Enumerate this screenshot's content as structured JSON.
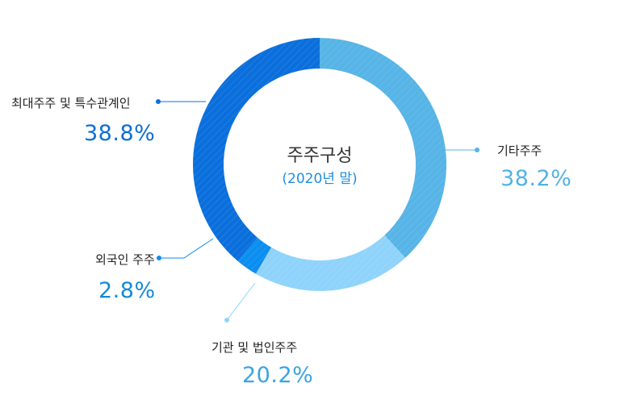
{
  "colors": {
    "largest": "#0a6fdc",
    "others": "#56b4e6",
    "institutions": "#8fd3fb",
    "foreign": "#0b8ef0",
    "pct_largest": "#0c6fd1",
    "pct_others": "#53b2e3",
    "pct_institutions": "#3aa4e0",
    "pct_foreign": "#148ad9"
  },
  "chart_data": {
    "type": "pie",
    "title": "주주구성",
    "subtitle": "(2020년 말)",
    "slices": [
      {
        "label": "기타주주",
        "value": 38.2,
        "display": "38.2%"
      },
      {
        "label": "기관 및 법인주주",
        "value": 20.2,
        "display": "20.2%"
      },
      {
        "label": "외국인 주주",
        "value": 2.8,
        "display": "2.8%"
      },
      {
        "label": "최대주주 및 특수관계인",
        "value": 38.8,
        "display": "38.8%"
      }
    ]
  }
}
